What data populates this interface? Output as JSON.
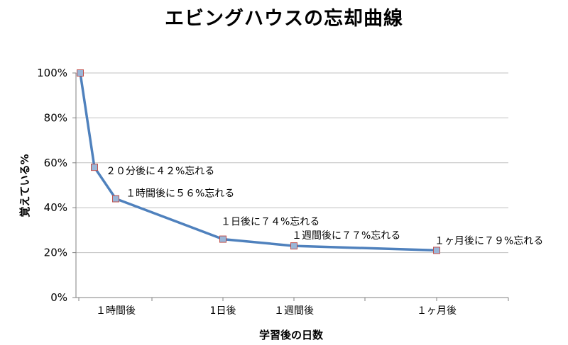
{
  "chart_data": {
    "type": "line",
    "title": "エビングハウスの忘却曲線",
    "xlabel": "学習後の日数",
    "ylabel": "覚えている%",
    "ylim": [
      0,
      100
    ],
    "yticks": [
      0,
      20,
      40,
      60,
      80,
      100
    ],
    "ytick_labels": [
      "0%",
      "20%",
      "40%",
      "60%",
      "80%",
      "100%"
    ],
    "xtick_labels": [
      "１時間後",
      "1日後",
      "１週間後",
      "１ヶ月後"
    ],
    "grid": true,
    "legend": "none",
    "colors": {
      "line": "#4f81bd",
      "marker_fill": "#9ab6d8",
      "marker_edge": "#c0504d",
      "grid": "#c0c0c0"
    },
    "points": [
      {
        "y": 100,
        "label": ""
      },
      {
        "y": 58,
        "label": "２０分後に４２%忘れる"
      },
      {
        "y": 44,
        "label": "１時間後に５６%忘れる"
      },
      {
        "y": 26,
        "label": "１日後に７４%忘れる"
      },
      {
        "y": 23,
        "label": "１週間後に７７%忘れる"
      },
      {
        "y": 21,
        "label": "１ヶ月後に７９%忘れる"
      }
    ]
  }
}
